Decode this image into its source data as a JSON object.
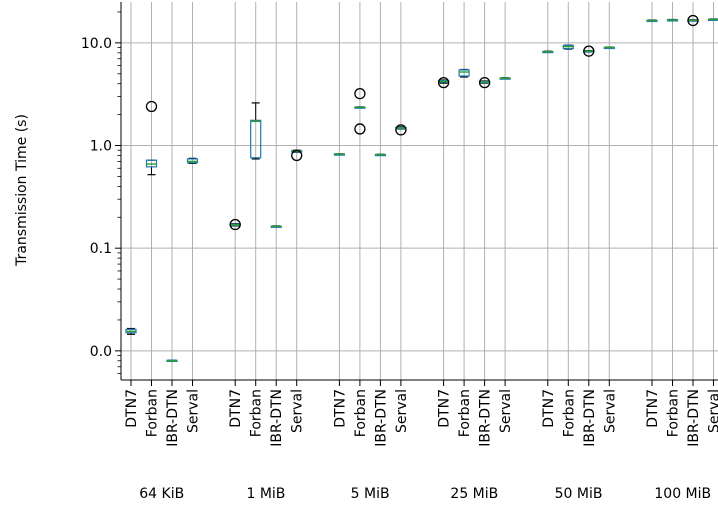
{
  "chart_data": {
    "type": "box",
    "ylabel": "Transmission Time (s)",
    "yscale": "log",
    "yticks": [
      {
        "value": 0.01,
        "label": "0.0"
      },
      {
        "value": 0.1,
        "label": "0.1"
      },
      {
        "value": 1.0,
        "label": "1.0"
      },
      {
        "value": 10.0,
        "label": "10.0"
      }
    ],
    "ylim": [
      0.0052,
      25
    ],
    "grid": true,
    "categories": [
      "DTN7",
      "Forban",
      "IBR-DTN",
      "Serval"
    ],
    "groups": [
      "64 KiB",
      "1 MiB",
      "5 MiB",
      "25 MiB",
      "50 MiB",
      "100 MiB"
    ],
    "boxes": [
      {
        "group": "64 KiB",
        "category": "DTN7",
        "whislo": 0.0145,
        "q1": 0.015,
        "med": 0.0155,
        "q3": 0.0162,
        "whishi": 0.0165,
        "fliers": []
      },
      {
        "group": "64 KiB",
        "category": "Forban",
        "whislo": 0.52,
        "q1": 0.62,
        "med": 0.66,
        "q3": 0.72,
        "whishi": 0.72,
        "fliers": [
          2.4
        ]
      },
      {
        "group": "64 KiB",
        "category": "IBR-DTN",
        "whislo": 0.0079,
        "q1": 0.0079,
        "med": 0.008,
        "q3": 0.0081,
        "whishi": 0.0081,
        "fliers": []
      },
      {
        "group": "64 KiB",
        "category": "Serval",
        "whislo": 0.67,
        "q1": 0.68,
        "med": 0.7,
        "q3": 0.74,
        "whishi": 0.75,
        "fliers": []
      },
      {
        "group": "1 MiB",
        "category": "DTN7",
        "whislo": 0.165,
        "q1": 0.167,
        "med": 0.169,
        "q3": 0.171,
        "whishi": 0.173,
        "fliers": [
          0.17
        ]
      },
      {
        "group": "1 MiB",
        "category": "Forban",
        "whislo": 0.74,
        "q1": 0.76,
        "med": 1.72,
        "q3": 1.76,
        "whishi": 2.6,
        "fliers": []
      },
      {
        "group": "1 MiB",
        "category": "IBR-DTN",
        "whislo": 0.161,
        "q1": 0.162,
        "med": 0.163,
        "q3": 0.164,
        "whishi": 0.165,
        "fliers": []
      },
      {
        "group": "1 MiB",
        "category": "Serval",
        "whislo": 0.86,
        "q1": 0.87,
        "med": 0.88,
        "q3": 0.89,
        "whishi": 0.9,
        "fliers": [
          0.8
        ]
      },
      {
        "group": "5 MiB",
        "category": "DTN7",
        "whislo": 0.82,
        "q1": 0.822,
        "med": 0.825,
        "q3": 0.828,
        "whishi": 0.83,
        "fliers": []
      },
      {
        "group": "5 MiB",
        "category": "Forban",
        "whislo": 2.33,
        "q1": 2.34,
        "med": 2.35,
        "q3": 2.37,
        "whishi": 2.38,
        "fliers": [
          3.2,
          1.45
        ]
      },
      {
        "group": "5 MiB",
        "category": "IBR-DTN",
        "whislo": 0.81,
        "q1": 0.813,
        "med": 0.816,
        "q3": 0.819,
        "whishi": 0.822,
        "fliers": []
      },
      {
        "group": "5 MiB",
        "category": "Serval",
        "whislo": 1.45,
        "q1": 1.47,
        "med": 1.48,
        "q3": 1.5,
        "whishi": 1.52,
        "fliers": [
          1.42
        ]
      },
      {
        "group": "25 MiB",
        "category": "DTN7",
        "whislo": 4.05,
        "q1": 4.15,
        "med": 4.2,
        "q3": 4.3,
        "whishi": 4.35,
        "fliers": [
          4.1
        ]
      },
      {
        "group": "25 MiB",
        "category": "Forban",
        "whislo": 4.65,
        "q1": 4.75,
        "med": 5.2,
        "q3": 5.45,
        "whishi": 5.5,
        "fliers": []
      },
      {
        "group": "25 MiB",
        "category": "IBR-DTN",
        "whislo": 4.05,
        "q1": 4.1,
        "med": 4.15,
        "q3": 4.2,
        "whishi": 4.25,
        "fliers": [
          4.1
        ]
      },
      {
        "group": "25 MiB",
        "category": "Serval",
        "whislo": 4.48,
        "q1": 4.5,
        "med": 4.52,
        "q3": 4.55,
        "whishi": 4.57,
        "fliers": []
      },
      {
        "group": "50 MiB",
        "category": "DTN7",
        "whislo": 8.1,
        "q1": 8.15,
        "med": 8.2,
        "q3": 8.25,
        "whishi": 8.3,
        "fliers": []
      },
      {
        "group": "50 MiB",
        "category": "Forban",
        "whislo": 8.7,
        "q1": 8.8,
        "med": 9.2,
        "q3": 9.45,
        "whishi": 9.5,
        "fliers": []
      },
      {
        "group": "50 MiB",
        "category": "IBR-DTN",
        "whislo": 8.2,
        "q1": 8.25,
        "med": 8.3,
        "q3": 8.35,
        "whishi": 8.4,
        "fliers": [
          8.3
        ]
      },
      {
        "group": "50 MiB",
        "category": "Serval",
        "whislo": 8.9,
        "q1": 8.95,
        "med": 9.0,
        "q3": 9.05,
        "whishi": 9.1,
        "fliers": []
      },
      {
        "group": "100 MiB",
        "category": "DTN7",
        "whislo": 16.3,
        "q1": 16.4,
        "med": 16.5,
        "q3": 16.6,
        "whishi": 16.7,
        "fliers": []
      },
      {
        "group": "100 MiB",
        "category": "Forban",
        "whislo": 16.5,
        "q1": 16.6,
        "med": 16.7,
        "q3": 16.8,
        "whishi": 16.9,
        "fliers": []
      },
      {
        "group": "100 MiB",
        "category": "IBR-DTN",
        "whislo": 16.4,
        "q1": 16.5,
        "med": 16.6,
        "q3": 16.7,
        "whishi": 16.8,
        "fliers": [
          16.5
        ]
      },
      {
        "group": "100 MiB",
        "category": "Serval",
        "whislo": 16.7,
        "q1": 16.8,
        "med": 16.9,
        "q3": 17.0,
        "whishi": 17.1,
        "fliers": []
      }
    ],
    "colors": {
      "box": "#1f77b4",
      "median": "#2ca02c",
      "grid": "#b0b0b0",
      "axis": "#000000"
    }
  }
}
